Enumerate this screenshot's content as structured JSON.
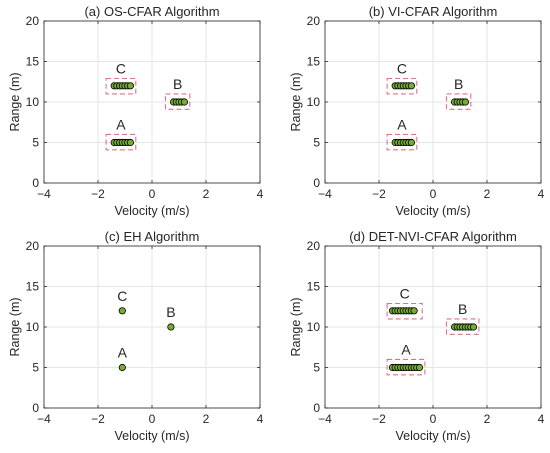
{
  "colors": {
    "marker_face": "#77ac30",
    "marker_edge": "#000000",
    "box": "#d9738c",
    "grid": "#e5e5e5",
    "axis": "#262626"
  },
  "chart_data": [
    {
      "type": "scatter",
      "title": "(a) OS-CFAR Algorithm",
      "xlabel": "Velocity (m/s)",
      "ylabel": "Range (m)",
      "xlim": [
        -4,
        4
      ],
      "ylim": [
        0,
        20
      ],
      "xticks": [
        "−4",
        "−2",
        "0",
        "2",
        "4"
      ],
      "yticks": [
        "0",
        "5",
        "10",
        "15",
        "20"
      ],
      "grid": true,
      "groups": [
        {
          "label": "A",
          "x": [
            -1.4,
            -1.3,
            -1.2,
            -1.1,
            -1.0,
            -0.9,
            -0.8
          ],
          "y": 5,
          "box": [
            -1.7,
            -0.6,
            4.1,
            6.0
          ]
        },
        {
          "label": "B",
          "x": [
            0.8,
            0.9,
            1.0,
            1.1,
            1.2
          ],
          "y": 10,
          "box": [
            0.5,
            1.4,
            9.1,
            11.0
          ]
        },
        {
          "label": "C",
          "x": [
            -1.4,
            -1.3,
            -1.2,
            -1.1,
            -1.0,
            -0.9,
            -0.8
          ],
          "y": 12,
          "box": [
            -1.7,
            -0.6,
            11.0,
            12.9
          ]
        }
      ]
    },
    {
      "type": "scatter",
      "title": "(b) VI-CFAR Algorithm",
      "xlabel": "Velocity (m/s)",
      "ylabel": "Range (m)",
      "xlim": [
        -4,
        4
      ],
      "ylim": [
        0,
        20
      ],
      "xticks": [
        "−4",
        "−2",
        "0",
        "2",
        "4"
      ],
      "yticks": [
        "0",
        "5",
        "10",
        "15",
        "20"
      ],
      "grid": true,
      "groups": [
        {
          "label": "A",
          "x": [
            -1.4,
            -1.3,
            -1.2,
            -1.1,
            -1.0,
            -0.9,
            -0.8
          ],
          "y": 5,
          "box": [
            -1.7,
            -0.6,
            4.1,
            6.0
          ]
        },
        {
          "label": "B",
          "x": [
            0.8,
            0.9,
            1.0,
            1.1,
            1.2
          ],
          "y": 10,
          "box": [
            0.5,
            1.4,
            9.1,
            11.0
          ]
        },
        {
          "label": "C",
          "x": [
            -1.4,
            -1.3,
            -1.2,
            -1.1,
            -1.0,
            -0.9,
            -0.8
          ],
          "y": 12,
          "box": [
            -1.7,
            -0.6,
            11.0,
            12.9
          ]
        }
      ]
    },
    {
      "type": "scatter",
      "title": "(c) EH Algorithm",
      "xlabel": "Velocity (m/s)",
      "ylabel": "Range (m)",
      "xlim": [
        -4,
        4
      ],
      "ylim": [
        0,
        20
      ],
      "xticks": [
        "−4",
        "−2",
        "0",
        "2",
        "4"
      ],
      "yticks": [
        "0",
        "5",
        "10",
        "15",
        "20"
      ],
      "grid": true,
      "groups": [
        {
          "label": "A",
          "x": [
            -1.1
          ],
          "y": 5
        },
        {
          "label": "B",
          "x": [
            0.7
          ],
          "y": 10
        },
        {
          "label": "C",
          "x": [
            -1.1
          ],
          "y": 12
        }
      ]
    },
    {
      "type": "scatter",
      "title": "(d) DET-NVI-CFAR Algorithm",
      "xlabel": "Velocity (m/s)",
      "ylabel": "Range (m)",
      "xlim": [
        -4,
        4
      ],
      "ylim": [
        0,
        20
      ],
      "xticks": [
        "−4",
        "−2",
        "0",
        "2",
        "4"
      ],
      "yticks": [
        "0",
        "5",
        "10",
        "15",
        "20"
      ],
      "grid": true,
      "groups": [
        {
          "label": "A",
          "x": [
            -1.5,
            -1.4,
            -1.3,
            -1.2,
            -1.1,
            -1.0,
            -0.9,
            -0.8,
            -0.7,
            -0.6,
            -0.5
          ],
          "y": 5,
          "box": [
            -1.7,
            -0.3,
            4.1,
            6.0
          ]
        },
        {
          "label": "B",
          "x": [
            0.8,
            0.9,
            1.0,
            1.1,
            1.2,
            1.3,
            1.4,
            1.5
          ],
          "y": 10,
          "box": [
            0.5,
            1.7,
            9.1,
            11.0
          ]
        },
        {
          "label": "C",
          "x": [
            -1.5,
            -1.4,
            -1.3,
            -1.2,
            -1.1,
            -1.0,
            -0.9,
            -0.8,
            -0.7
          ],
          "y": 12,
          "box": [
            -1.7,
            -0.4,
            11.0,
            12.9
          ]
        }
      ]
    }
  ]
}
